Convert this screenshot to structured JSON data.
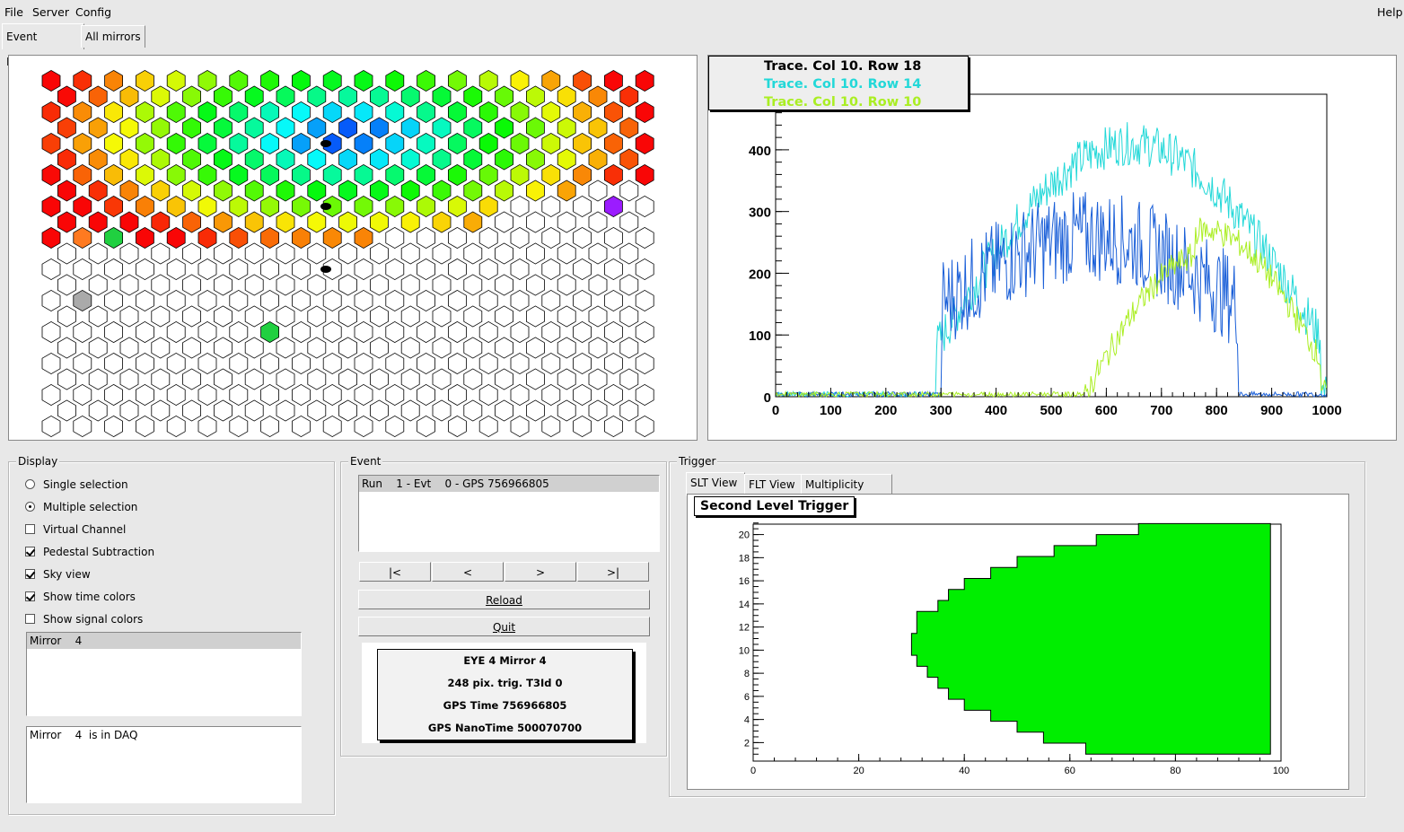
{
  "menu": {
    "file": "File",
    "server": "Server",
    "config": "Config",
    "help": "Help"
  },
  "tabs": {
    "event_display": "Event Display",
    "all_mirrors": "All mirrors"
  },
  "trace_plot": {
    "legend": [
      "Trace. Col 10. Row 18",
      "Trace. Col 10. Row 14",
      "Trace. Col 10. Row 10"
    ],
    "legend_colors": [
      "#000000",
      "#22d8d8",
      "#aaee22"
    ],
    "series_colors": [
      "#1a5fd8",
      "#22d8d8",
      "#aaee22"
    ],
    "xticks": [
      "0",
      "100",
      "200",
      "300",
      "400",
      "500",
      "600",
      "700",
      "800",
      "900",
      "1000"
    ],
    "yticks": [
      "0",
      "100",
      "200",
      "300",
      "400"
    ]
  },
  "display": {
    "title": "Display",
    "options": [
      {
        "label": "Single selection",
        "type": "radio",
        "checked": false
      },
      {
        "label": "Multiple selection",
        "type": "radio",
        "checked": true
      },
      {
        "label": "Virtual Channel",
        "type": "check",
        "checked": false
      },
      {
        "label": "Pedestal Subtraction",
        "type": "check",
        "checked": true
      },
      {
        "label": "Sky view",
        "type": "check",
        "checked": true
      },
      {
        "label": "Show time colors",
        "type": "check",
        "checked": true
      },
      {
        "label": "Show signal colors",
        "type": "check",
        "checked": false
      }
    ],
    "mirror_list": [
      "Mirror    4"
    ],
    "status_list": [
      "Mirror    4  is in DAQ"
    ]
  },
  "event": {
    "title": "Event",
    "list": [
      "Run    1 - Evt    0 - GPS 756966805"
    ],
    "nav": {
      "first": "|<",
      "prev": "<",
      "next": ">",
      "last": ">|"
    },
    "reload_label": "Reload",
    "quit_label": "Quit",
    "info": [
      "EYE 4  Mirror 4",
      "248 pix. trig. T3Id 0",
      "GPS Time 756966805",
      "GPS NanoTime 500070700"
    ]
  },
  "trigger": {
    "title": "Trigger",
    "tabs": [
      "SLT View",
      "FLT View",
      "Multiplicity View"
    ],
    "plot_title": "Second Level Trigger",
    "xticks": [
      "0",
      "20",
      "40",
      "60",
      "80",
      "100"
    ],
    "yticks": [
      "2",
      "4",
      "6",
      "8",
      "10",
      "12",
      "14",
      "16",
      "18",
      "20"
    ],
    "fill_color": "#00ee00"
  }
}
